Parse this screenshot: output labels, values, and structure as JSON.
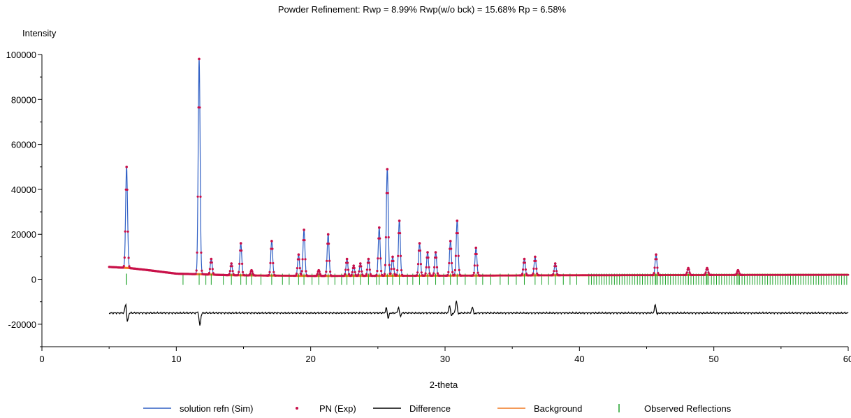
{
  "chart_data": {
    "type": "line",
    "title": "Powder Refinement:  Rwp = 8.99%   Rwp(w/o bck) = 15.68%   Rp = 6.58%",
    "xlabel": "2-theta",
    "ylabel": "Intensity",
    "xlim": [
      0,
      60
    ],
    "ylim": [
      -30000,
      100000
    ],
    "x_ticks": [
      0,
      10,
      20,
      30,
      40,
      50,
      60
    ],
    "y_ticks": [
      -20000,
      0,
      20000,
      40000,
      60000,
      80000,
      100000
    ],
    "grid": false,
    "legend_position": "bottom",
    "background_levels": [
      [
        5,
        5500
      ],
      [
        6.5,
        5000
      ],
      [
        8,
        4000
      ],
      [
        10,
        2500
      ],
      [
        12,
        2200
      ],
      [
        14,
        1800
      ],
      [
        20,
        1500
      ],
      [
        30,
        1600
      ],
      [
        40,
        1800
      ],
      [
        60,
        2000
      ]
    ],
    "peaks": [
      {
        "x": 6.3,
        "y": 50000
      },
      {
        "x": 11.7,
        "y": 98000
      },
      {
        "x": 12.6,
        "y": 9000
      },
      {
        "x": 14.1,
        "y": 7000
      },
      {
        "x": 14.8,
        "y": 16000
      },
      {
        "x": 15.6,
        "y": 4000
      },
      {
        "x": 17.1,
        "y": 17000
      },
      {
        "x": 19.1,
        "y": 11000
      },
      {
        "x": 19.5,
        "y": 22000
      },
      {
        "x": 20.6,
        "y": 4000
      },
      {
        "x": 21.3,
        "y": 20000
      },
      {
        "x": 22.7,
        "y": 9000
      },
      {
        "x": 23.2,
        "y": 6000
      },
      {
        "x": 23.7,
        "y": 7000
      },
      {
        "x": 24.3,
        "y": 9000
      },
      {
        "x": 25.1,
        "y": 23000
      },
      {
        "x": 25.7,
        "y": 49000
      },
      {
        "x": 26.1,
        "y": 10000
      },
      {
        "x": 26.6,
        "y": 26000
      },
      {
        "x": 28.1,
        "y": 16000
      },
      {
        "x": 28.7,
        "y": 12000
      },
      {
        "x": 29.3,
        "y": 12000
      },
      {
        "x": 30.4,
        "y": 17000
      },
      {
        "x": 30.9,
        "y": 26000
      },
      {
        "x": 32.3,
        "y": 14000
      },
      {
        "x": 35.9,
        "y": 9000
      },
      {
        "x": 36.7,
        "y": 10000
      },
      {
        "x": 38.2,
        "y": 7000
      },
      {
        "x": 45.7,
        "y": 11000
      },
      {
        "x": 48.1,
        "y": 5000
      },
      {
        "x": 49.5,
        "y": 5000
      },
      {
        "x": 51.8,
        "y": 4000
      }
    ],
    "difference_offset": -15000,
    "difference_spikes": [
      {
        "x": 6.3,
        "y": -10000,
        "dip": -20000
      },
      {
        "x": 11.7,
        "y": -14000,
        "dip": -21000
      },
      {
        "x": 25.7,
        "y": -12000,
        "dip": -18000
      },
      {
        "x": 26.6,
        "y": -12000,
        "dip": -17000
      },
      {
        "x": 30.4,
        "y": -11000,
        "dip": -17000
      },
      {
        "x": 30.9,
        "y": -9000,
        "dip": -16000
      },
      {
        "x": 32.1,
        "y": -12000,
        "dip": -16000
      },
      {
        "x": 45.7,
        "y": -11000,
        "dip": -16000
      }
    ],
    "reflection_tick_y": [
      -2500,
      2500
    ],
    "series": [
      {
        "name": "solution refn (Sim)",
        "color": "#2f5fc4",
        "style": "line"
      },
      {
        "name": "PN (Exp)",
        "color": "#c8104a",
        "style": "marker"
      },
      {
        "name": "Difference",
        "color": "#000000",
        "style": "line"
      },
      {
        "name": "Background",
        "color": "#f07820",
        "style": "line"
      },
      {
        "name": "Observed Reflections",
        "color": "#1fa32a",
        "style": "tick"
      }
    ]
  }
}
